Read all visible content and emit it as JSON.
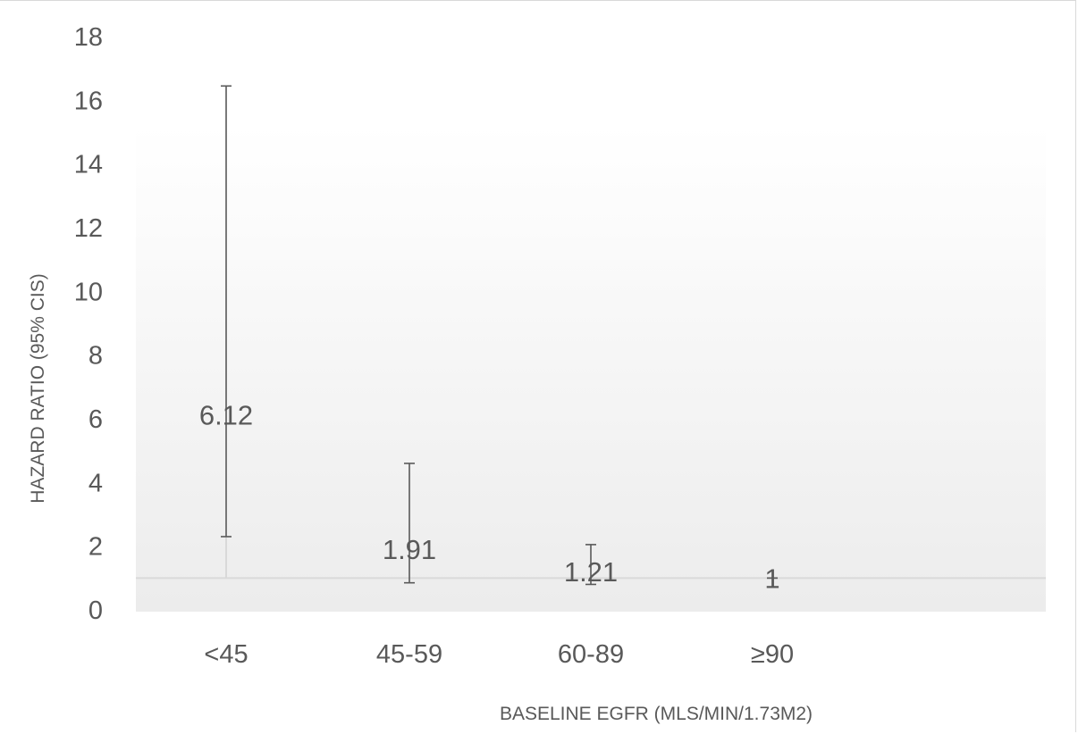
{
  "chart_data": {
    "type": "error-bar",
    "categories": [
      "<45",
      "45-59",
      "60-89",
      "≥90"
    ],
    "values": [
      6.12,
      1.91,
      1.21,
      1
    ],
    "value_labels": [
      "6.12",
      "1.91",
      "1.21",
      "1"
    ],
    "ci_lower": [
      2.3,
      0.85,
      0.8,
      1
    ],
    "ci_upper": [
      16.45,
      4.6,
      2.05,
      1
    ],
    "reference_line": 1,
    "xlabel": "BASELINE EGFR (MLS/MIN/1.73M2)",
    "ylabel": "HAZARD RATIO (95% CIS)",
    "ylim": [
      0,
      18
    ],
    "yticks": [
      0,
      2,
      4,
      6,
      8,
      10,
      12,
      14,
      16,
      18
    ],
    "grid": false,
    "colors": {
      "errorbar": "#595959",
      "refline": "#d9d9d9",
      "text": "#595959",
      "plot_bg_top": "#ffffff",
      "plot_bg_bottom": "#eeeeee"
    }
  }
}
